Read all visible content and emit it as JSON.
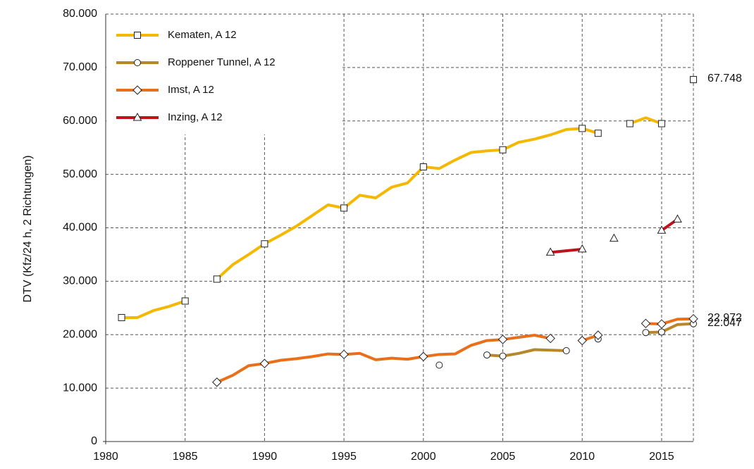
{
  "chart_data": {
    "type": "line",
    "y_label": "DTV (Kfz/24 h, 2 Richtungen)",
    "x": [
      1981,
      1982,
      1983,
      1984,
      1985,
      1986,
      1987,
      1988,
      1989,
      1990,
      1991,
      1992,
      1993,
      1994,
      1995,
      1996,
      1997,
      1998,
      1999,
      2000,
      2001,
      2002,
      2003,
      2004,
      2005,
      2006,
      2007,
      2008,
      2009,
      2010,
      2011,
      2012,
      2013,
      2014,
      2015,
      2016,
      2017
    ],
    "xlim": [
      1980,
      2017
    ],
    "xticks": [
      1980,
      1985,
      1990,
      1995,
      2000,
      2005,
      2010,
      2015
    ],
    "ylim": [
      0,
      80000
    ],
    "yticks": [
      0,
      {
        "value": 10000,
        "label": "10.000"
      },
      {
        "value": 20000,
        "label": "20.000"
      },
      {
        "value": 30000,
        "label": "30.000"
      },
      {
        "value": 40000,
        "label": "40.000"
      },
      {
        "value": 50000,
        "label": "50.000"
      },
      {
        "value": 60000,
        "label": "60.000"
      },
      {
        "value": 70000,
        "label": "70.000"
      },
      {
        "value": 80000,
        "label": "80.000"
      }
    ],
    "grid": true,
    "legend": "upper left",
    "series": [
      {
        "name": "Kematen, A 12",
        "color": "#f5b800",
        "marker": "square",
        "values": [
          23200,
          23200,
          24500,
          25300,
          26300,
          null,
          30400,
          33100,
          35000,
          37000,
          38600,
          40300,
          42300,
          44300,
          43700,
          46100,
          45600,
          47600,
          48400,
          51400,
          51100,
          52700,
          54100,
          54400,
          54600,
          56000,
          56600,
          57400,
          58400,
          58600,
          57700,
          null,
          59500,
          60600,
          59500,
          null,
          67748
        ],
        "value_labels": [
          null,
          null,
          null,
          null,
          null,
          null,
          null,
          null,
          null,
          null,
          null,
          null,
          null,
          null,
          null,
          null,
          null,
          null,
          null,
          null,
          null,
          null,
          null,
          null,
          null,
          null,
          null,
          null,
          null,
          null,
          null,
          null,
          null,
          null,
          null,
          null,
          "67.748"
        ]
      },
      {
        "name": "Roppener Tunnel, A 12",
        "color": "#b8862b",
        "marker": "circle",
        "values": [
          null,
          null,
          null,
          null,
          null,
          null,
          null,
          null,
          null,
          null,
          null,
          null,
          null,
          null,
          null,
          null,
          null,
          null,
          null,
          null,
          14300,
          null,
          null,
          16200,
          16000,
          16500,
          17200,
          17100,
          17000,
          null,
          19200,
          null,
          null,
          20400,
          20500,
          21900,
          22047
        ],
        "value_labels": [
          null,
          null,
          null,
          null,
          null,
          null,
          null,
          null,
          null,
          null,
          null,
          null,
          null,
          null,
          null,
          null,
          null,
          null,
          null,
          null,
          null,
          null,
          null,
          null,
          null,
          null,
          null,
          null,
          null,
          null,
          null,
          null,
          null,
          null,
          null,
          null,
          "22.047"
        ]
      },
      {
        "name": "Imst, A 12",
        "color": "#e8701a",
        "marker": "diamond",
        "values": [
          null,
          null,
          null,
          null,
          null,
          null,
          11100,
          12400,
          14200,
          14600,
          15200,
          15500,
          15900,
          16400,
          16300,
          16500,
          15300,
          15600,
          15400,
          15900,
          16300,
          16400,
          18000,
          18900,
          19100,
          19500,
          19900,
          19300,
          null,
          18900,
          19900,
          null,
          null,
          22100,
          22000,
          22900,
          22972
        ],
        "value_labels": [
          null,
          null,
          null,
          null,
          null,
          null,
          null,
          null,
          null,
          null,
          null,
          null,
          null,
          null,
          null,
          null,
          null,
          null,
          null,
          null,
          null,
          null,
          null,
          null,
          null,
          null,
          null,
          null,
          null,
          null,
          null,
          null,
          null,
          null,
          null,
          null,
          "22.972"
        ]
      },
      {
        "name": "Inzing, A 12",
        "color": "#c0121b",
        "marker": "triangle",
        "values": [
          null,
          null,
          null,
          null,
          null,
          null,
          null,
          null,
          null,
          null,
          null,
          null,
          null,
          null,
          null,
          null,
          null,
          null,
          null,
          null,
          null,
          null,
          null,
          null,
          null,
          null,
          null,
          35400,
          35700,
          36000,
          null,
          38000,
          null,
          null,
          39500,
          41600,
          null
        ]
      }
    ]
  }
}
